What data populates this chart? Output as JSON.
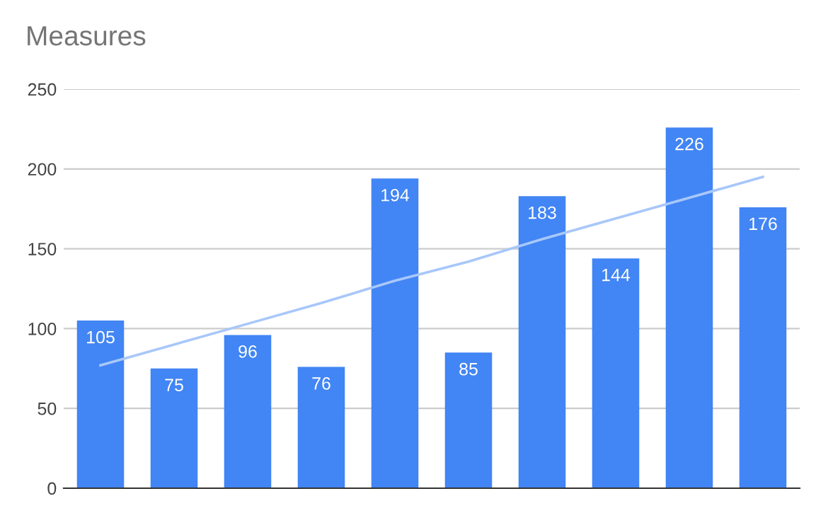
{
  "chart_data": {
    "type": "bar",
    "title": "Measures",
    "categories": [
      null,
      null,
      null,
      null,
      null,
      null,
      null,
      null,
      null,
      null
    ],
    "series": [
      {
        "color": "#4285f4",
        "value_labels": [
          "105",
          "75",
          "96",
          "76",
          "194",
          "85",
          "183",
          "144",
          "226",
          "176"
        ],
        "values": [
          105,
          75,
          96,
          76,
          194,
          85,
          183,
          144,
          226,
          176
        ]
      },
      {
        "type": "line",
        "color": "#a8c7fa",
        "values": [
          77,
          90,
          103,
          116,
          130,
          142,
          156,
          169,
          182,
          195
        ]
      }
    ],
    "ylim": [
      0,
      250
    ],
    "yticks": [
      0,
      50,
      100,
      150,
      200,
      250
    ],
    "grid": "y",
    "tick_labels": "y",
    "legend": false
  }
}
